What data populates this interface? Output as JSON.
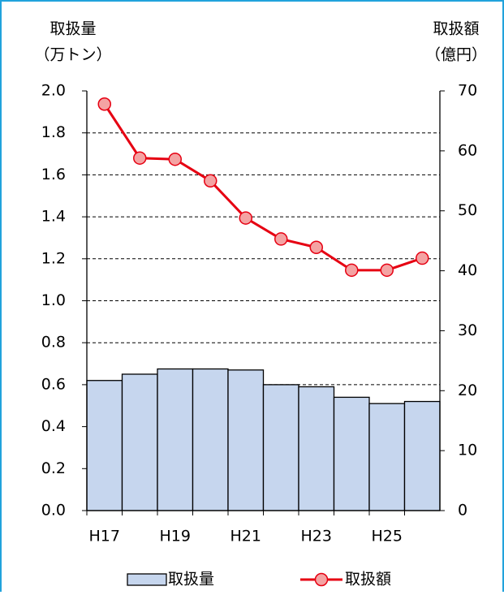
{
  "chart_data": {
    "type": "bar-line",
    "y_label": [
      "取扱量",
      "（万トン）"
    ],
    "y2_label": [
      "取扱額",
      "（億円）"
    ],
    "categories": [
      "H17",
      null,
      "H19",
      null,
      "H21",
      null,
      "H23",
      null,
      "H25",
      null
    ],
    "series": [
      {
        "name": "取扱量",
        "type": "bar",
        "color": "#c6d6ee",
        "values": [
          0.62,
          0.65,
          0.675,
          0.675,
          0.67,
          0.6,
          0.59,
          0.54,
          0.51,
          0.52
        ]
      },
      {
        "name": "取扱額",
        "type": "line",
        "axis": "y2",
        "color": "#e60012",
        "marker_color": "#f4a3a3",
        "values": [
          67.8,
          58.8,
          58.6,
          55,
          48.8,
          45.3,
          43.9,
          40.1,
          40.1,
          42.1
        ]
      }
    ],
    "ylim": [
      0,
      2
    ],
    "yticks": [
      {
        "value": 0,
        "label": "0.0"
      },
      {
        "value": 0.2,
        "label": "0.2"
      },
      {
        "value": 0.4,
        "label": "0.4"
      },
      {
        "value": 0.6,
        "label": "0.6"
      },
      {
        "value": 0.8,
        "label": "0.8"
      },
      {
        "value": 1,
        "label": "1.0"
      },
      {
        "value": 1.2,
        "label": "1.2"
      },
      {
        "value": 1.4,
        "label": "1.4"
      },
      {
        "value": 1.6,
        "label": "1.6"
      },
      {
        "value": 1.8,
        "label": "1.8"
      },
      {
        "value": 2,
        "label": "2.0"
      }
    ],
    "y2lim": [
      0,
      70
    ],
    "y2ticks": [
      0,
      10,
      20,
      30,
      40,
      50,
      60,
      70
    ],
    "grid": true
  }
}
